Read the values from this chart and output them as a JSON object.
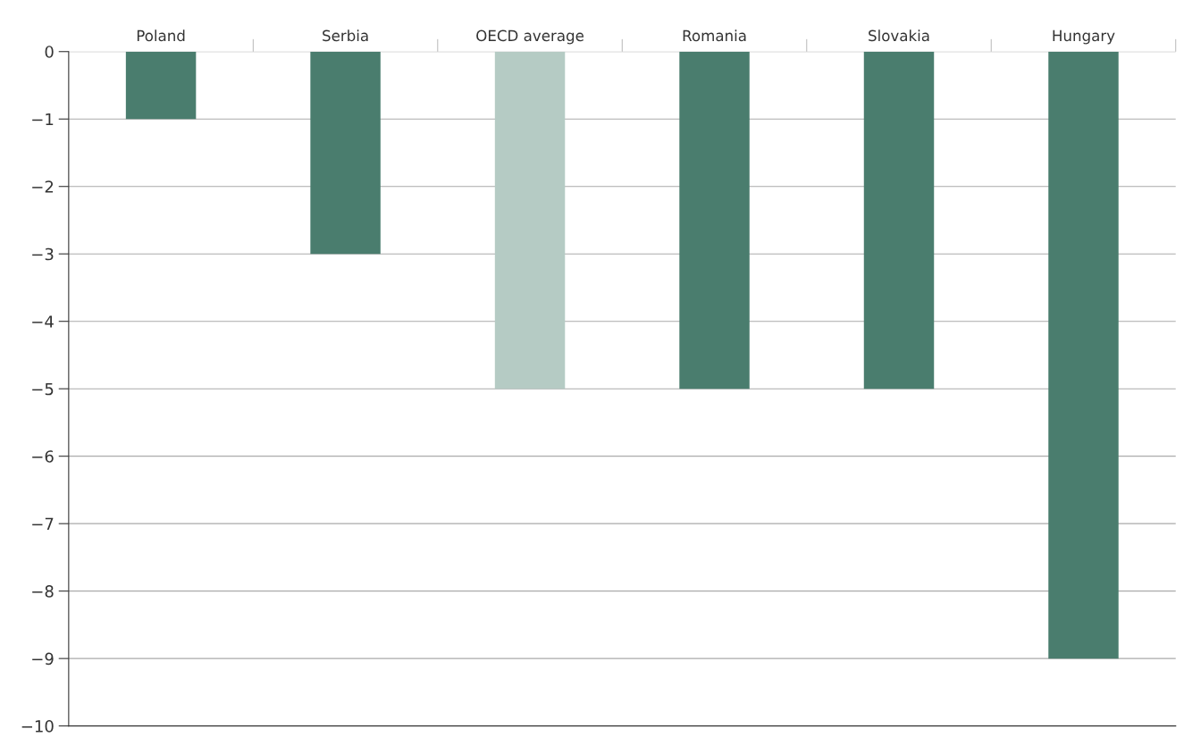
{
  "chart_data": {
    "type": "bar",
    "categories": [
      "Poland",
      "Serbia",
      "OECD average",
      "Romania",
      "Slovakia",
      "Hungary"
    ],
    "values": [
      -1,
      -3,
      -5,
      -5,
      -5,
      -9
    ],
    "colors": [
      "#4a7d6e",
      "#4a7d6e",
      "#b5cbc4",
      "#4a7d6e",
      "#4a7d6e",
      "#4a7d6e"
    ],
    "ylim": [
      -10,
      0
    ],
    "yticks": [
      0,
      -1,
      -2,
      -3,
      -4,
      -5,
      -6,
      -7,
      -8,
      -9,
      -10
    ],
    "grid": "y"
  }
}
